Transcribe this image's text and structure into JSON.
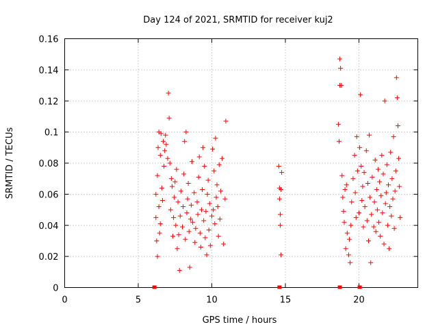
{
  "chart_data": {
    "type": "scatter",
    "title": "Day 124 of 2021, SRMTID for receiver kuj2",
    "xlabel": "GPS time / hours",
    "ylabel": "SRMTID / TECUs",
    "xlim": [
      0,
      24
    ],
    "ylim": [
      0,
      0.16
    ],
    "x_ticks": [
      0,
      5,
      10,
      15,
      20
    ],
    "x_tick_labels": [
      "0",
      "5",
      "10",
      "15",
      "20"
    ],
    "y_ticks": [
      0,
      0.02,
      0.04,
      0.06,
      0.08,
      0.1,
      0.12,
      0.14,
      0.16
    ],
    "y_tick_labels": [
      "0",
      "0.02",
      "0.04",
      "0.06",
      "0.08",
      "0.1",
      "0.12",
      "0.14",
      "0.16"
    ],
    "grid": true,
    "marker": "+",
    "color": "#ff0000",
    "series": [
      {
        "name": "SRMTID",
        "points": [
          [
            6.2,
            0.06
          ],
          [
            6.2,
            0.045
          ],
          [
            6.25,
            0.03
          ],
          [
            6.3,
            0.02
          ],
          [
            6.3,
            0.072
          ],
          [
            6.35,
            0.09
          ],
          [
            6.4,
            0.1
          ],
          [
            6.4,
            0.052
          ],
          [
            6.45,
            0.035
          ],
          [
            6.5,
            0.041
          ],
          [
            6.5,
            0.085
          ],
          [
            6.55,
            0.099
          ],
          [
            6.6,
            0.064
          ],
          [
            6.65,
            0.056
          ],
          [
            6.7,
            0.094
          ],
          [
            6.75,
            0.078
          ],
          [
            6.8,
            0.088
          ],
          [
            6.85,
            0.098
          ],
          [
            6.9,
            0.092
          ],
          [
            7.0,
            0.083
          ],
          [
            7.05,
            0.125
          ],
          [
            7.1,
            0.109
          ],
          [
            7.15,
            0.08
          ],
          [
            7.2,
            0.05
          ],
          [
            7.25,
            0.07
          ],
          [
            7.3,
            0.065
          ],
          [
            7.35,
            0.033
          ],
          [
            7.4,
            0.045
          ],
          [
            7.45,
            0.058
          ],
          [
            7.5,
            0.068
          ],
          [
            7.55,
            0.04
          ],
          [
            7.6,
            0.076
          ],
          [
            7.65,
            0.025
          ],
          [
            7.7,
            0.055
          ],
          [
            7.75,
            0.034
          ],
          [
            7.8,
            0.011
          ],
          [
            7.85,
            0.046
          ],
          [
            7.9,
            0.062
          ],
          [
            8.0,
            0.039
          ],
          [
            8.05,
            0.052
          ],
          [
            8.1,
            0.073
          ],
          [
            8.15,
            0.094
          ],
          [
            8.2,
            0.031
          ],
          [
            8.25,
            0.1
          ],
          [
            8.3,
            0.048
          ],
          [
            8.35,
            0.057
          ],
          [
            8.4,
            0.067
          ],
          [
            8.45,
            0.036
          ],
          [
            8.5,
            0.013
          ],
          [
            8.55,
            0.044
          ],
          [
            8.6,
            0.053
          ],
          [
            8.65,
            0.081
          ],
          [
            8.7,
            0.042
          ],
          [
            8.8,
            0.061
          ],
          [
            8.85,
            0.029
          ],
          [
            8.9,
            0.038
          ],
          [
            9.0,
            0.055
          ],
          [
            9.05,
            0.047
          ],
          [
            9.1,
            0.071
          ],
          [
            9.15,
            0.084
          ],
          [
            9.2,
            0.035
          ],
          [
            9.25,
            0.026
          ],
          [
            9.3,
            0.05
          ],
          [
            9.35,
            0.063
          ],
          [
            9.4,
            0.09
          ],
          [
            9.45,
            0.043
          ],
          [
            9.5,
            0.078
          ],
          [
            9.55,
            0.032
          ],
          [
            9.6,
            0.049
          ],
          [
            9.65,
            0.021
          ],
          [
            9.7,
            0.06
          ],
          [
            9.75,
            0.069
          ],
          [
            9.8,
            0.037
          ],
          [
            9.85,
            0.054
          ],
          [
            9.9,
            0.027
          ],
          [
            10.0,
            0.046
          ],
          [
            10.05,
            0.089
          ],
          [
            10.1,
            0.05
          ],
          [
            10.15,
            0.075
          ],
          [
            10.2,
            0.041
          ],
          [
            10.25,
            0.096
          ],
          [
            10.3,
            0.058
          ],
          [
            10.35,
            0.066
          ],
          [
            10.4,
            0.052
          ],
          [
            10.45,
            0.033
          ],
          [
            10.5,
            0.079
          ],
          [
            10.55,
            0.044
          ],
          [
            10.6,
            0.062
          ],
          [
            10.7,
            0.083
          ],
          [
            10.8,
            0.028
          ],
          [
            10.9,
            0.057
          ],
          [
            10.95,
            0.107
          ],
          [
            14.55,
            0.078
          ],
          [
            14.6,
            0.064
          ],
          [
            14.6,
            0.057
          ],
          [
            14.65,
            0.047
          ],
          [
            14.65,
            0.04
          ],
          [
            14.7,
            0.063
          ],
          [
            14.7,
            0.021
          ],
          [
            14.75,
            0.074
          ],
          [
            18.6,
            0.105
          ],
          [
            18.65,
            0.094
          ],
          [
            18.7,
            0.147
          ],
          [
            18.7,
            0.13
          ],
          [
            18.75,
            0.141
          ],
          [
            18.8,
            0.13
          ],
          [
            18.85,
            0.072
          ],
          [
            18.9,
            0.058
          ],
          [
            18.95,
            0.049
          ],
          [
            19.0,
            0.042
          ],
          [
            19.05,
            0.063
          ],
          [
            19.1,
            0.025
          ],
          [
            19.15,
            0.066
          ],
          [
            19.2,
            0.035
          ],
          [
            19.3,
            0.021
          ],
          [
            19.35,
            0.031
          ],
          [
            19.4,
            0.016
          ],
          [
            19.45,
            0.04
          ],
          [
            19.5,
            0.055
          ],
          [
            19.6,
            0.07
          ],
          [
            19.7,
            0.085
          ],
          [
            19.75,
            0.061
          ],
          [
            19.8,
            0.045
          ],
          [
            19.85,
            0.097
          ],
          [
            19.9,
            0.075
          ],
          [
            20.0,
            0.048
          ],
          [
            20.05,
            0.09
          ],
          [
            20.1,
            0.124
          ],
          [
            20.15,
            0.078
          ],
          [
            20.2,
            0.056
          ],
          [
            20.25,
            0.065
          ],
          [
            20.3,
            0.039
          ],
          [
            20.35,
            0.074
          ],
          [
            20.4,
            0.052
          ],
          [
            20.5,
            0.088
          ],
          [
            20.55,
            0.043
          ],
          [
            20.6,
            0.067
          ],
          [
            20.65,
            0.03
          ],
          [
            20.7,
            0.098
          ],
          [
            20.75,
            0.058
          ],
          [
            20.8,
            0.016
          ],
          [
            20.85,
            0.047
          ],
          [
            20.9,
            0.071
          ],
          [
            21.0,
            0.039
          ],
          [
            21.05,
            0.055
          ],
          [
            21.1,
            0.082
          ],
          [
            21.15,
            0.036
          ],
          [
            21.2,
            0.063
          ],
          [
            21.25,
            0.05
          ],
          [
            21.3,
            0.076
          ],
          [
            21.35,
            0.042
          ],
          [
            21.4,
            0.068
          ],
          [
            21.45,
            0.033
          ],
          [
            21.5,
            0.059
          ],
          [
            21.55,
            0.085
          ],
          [
            21.6,
            0.048
          ],
          [
            21.65,
            0.073
          ],
          [
            21.7,
            0.028
          ],
          [
            21.75,
            0.12
          ],
          [
            21.8,
            0.054
          ],
          [
            21.85,
            0.061
          ],
          [
            21.9,
            0.079
          ],
          [
            21.95,
            0.04
          ],
          [
            22.0,
            0.066
          ],
          [
            22.05,
            0.025
          ],
          [
            22.1,
            0.052
          ],
          [
            22.15,
            0.087
          ],
          [
            22.2,
            0.046
          ],
          [
            22.25,
            0.07
          ],
          [
            22.3,
            0.057
          ],
          [
            22.35,
            0.097
          ],
          [
            22.4,
            0.038
          ],
          [
            22.45,
            0.062
          ],
          [
            22.5,
            0.075
          ],
          [
            22.55,
            0.135
          ],
          [
            22.6,
            0.122
          ],
          [
            22.65,
            0.104
          ],
          [
            22.7,
            0.083
          ],
          [
            22.75,
            0.065
          ],
          [
            22.8,
            0.045
          ]
        ]
      }
    ],
    "zero_markers": [
      6.1,
      14.6,
      18.7,
      20.05
    ]
  }
}
